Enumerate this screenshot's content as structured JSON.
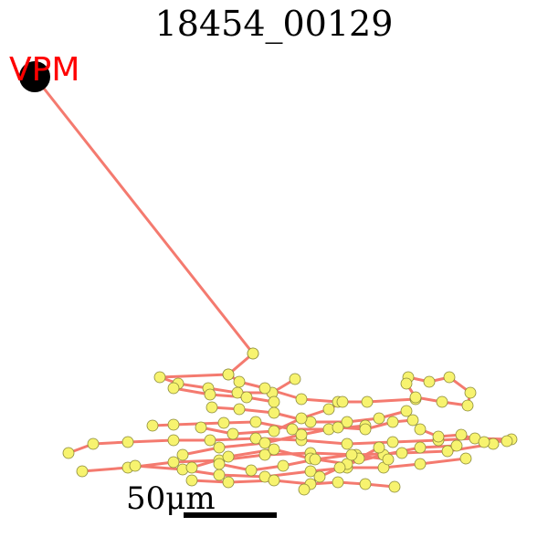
{
  "figure": {
    "title": "18454_00129",
    "scale_bar_label": "50μm",
    "soma_label": "VPM"
  },
  "colors": {
    "branch": "#f47a6f",
    "node_fill": "#f7f36f",
    "node_stroke": "#8a8a3a",
    "soma": "#000000",
    "soma_label": "#ff0000",
    "scale_bar": "#000000"
  }
}
